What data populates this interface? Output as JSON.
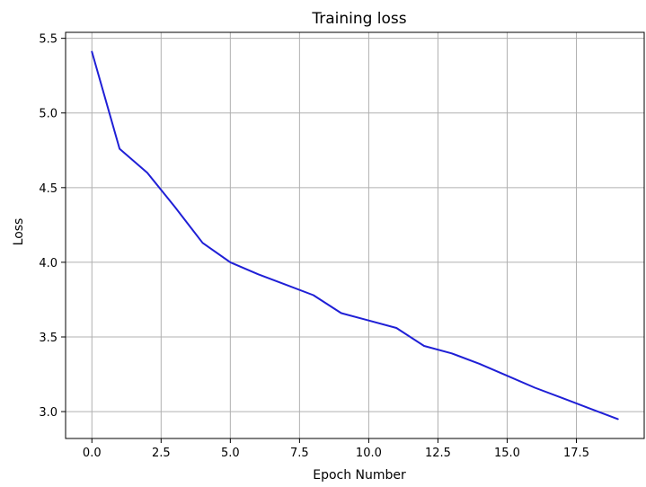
{
  "chart_data": {
    "type": "line",
    "title": "Training loss",
    "xlabel": "Epoch Number",
    "ylabel": "Loss",
    "xlim": [
      -0.95,
      19.95
    ],
    "ylim": [
      2.82,
      5.54
    ],
    "grid": true,
    "x_ticks": [
      0.0,
      2.5,
      5.0,
      7.5,
      10.0,
      12.5,
      15.0,
      17.5
    ],
    "x_tick_labels": [
      "0.0",
      "2.5",
      "5.0",
      "7.5",
      "10.0",
      "12.5",
      "15.0",
      "17.5"
    ],
    "y_ticks": [
      3.0,
      3.5,
      4.0,
      4.5,
      5.0,
      5.5
    ],
    "y_tick_labels": [
      "3.0",
      "3.5",
      "4.0",
      "4.5",
      "5.0",
      "5.5"
    ],
    "series": [
      {
        "color": "#1f1fd6",
        "x": [
          0,
          1,
          2,
          3,
          4,
          5,
          6,
          7,
          8,
          9,
          10,
          11,
          12,
          13,
          14,
          15,
          16,
          17,
          18,
          19
        ],
        "y": [
          5.41,
          4.76,
          4.6,
          4.37,
          4.13,
          4.0,
          3.92,
          3.85,
          3.78,
          3.66,
          3.61,
          3.56,
          3.44,
          3.39,
          3.32,
          3.24,
          3.16,
          3.09,
          3.02,
          2.95
        ]
      }
    ]
  }
}
